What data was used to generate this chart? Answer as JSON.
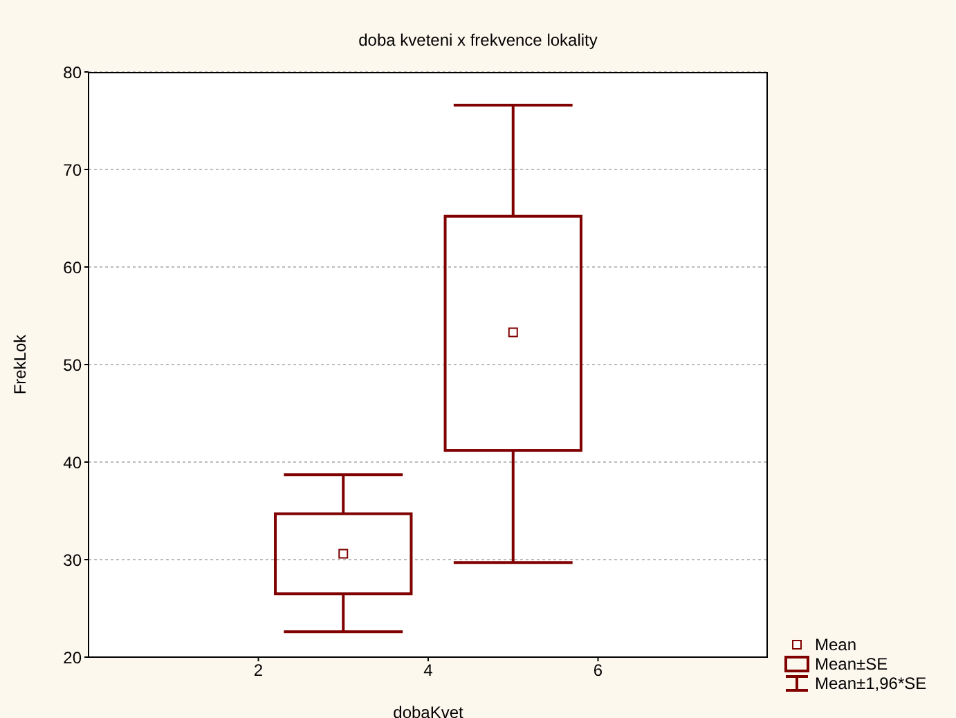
{
  "chart_data": {
    "type": "box",
    "title": "doba kveteni x frekvence lokality",
    "xlabel": "dobaKvet",
    "ylabel": "FrekLok",
    "x": [
      3,
      5
    ],
    "xlim": [
      0,
      8
    ],
    "xticks": [
      2,
      4,
      6
    ],
    "ylim": [
      20,
      80
    ],
    "yticks": [
      20,
      30,
      40,
      50,
      60,
      70,
      80
    ],
    "color": "#800000",
    "grid": "y",
    "marker": "square",
    "boxes": [
      {
        "low": 22.6,
        "q1": 26.5,
        "mean": 30.6,
        "q3": 34.7,
        "high": 38.7
      },
      {
        "low": 29.7,
        "q1": 41.2,
        "mean": 53.3,
        "q3": 65.2,
        "high": 76.6
      }
    ],
    "annotations": [
      "Mean",
      "Mean±SE",
      "Mean±1,96*SE"
    ]
  }
}
